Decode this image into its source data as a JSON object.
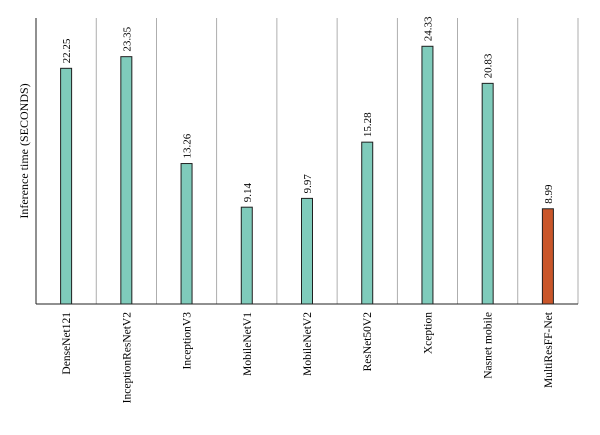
{
  "chart_data": {
    "type": "bar",
    "title": "",
    "xlabel": "",
    "ylabel": "Inference time (SECONDS)",
    "ylim": [
      0,
      27
    ],
    "grid": "vertical",
    "categories": [
      "DenseNet121",
      "InceptionResNetV2",
      "InceptionV3",
      "MobileNetV1",
      "MobileNetV2",
      "ResNet50V2",
      "Xception",
      "Nasnet mobile",
      "MultiResFF-Net"
    ],
    "values": [
      22.25,
      23.35,
      13.26,
      9.14,
      9.97,
      15.28,
      24.33,
      20.83,
      8.99
    ],
    "value_labels": [
      "22.25",
      "23.35",
      "13.26",
      "9.14",
      "9.97",
      "15.28",
      "24.33",
      "20.83",
      "8.99"
    ],
    "colors": {
      "default_bar": "#7fcbbb",
      "highlight_bar": "#c9562a",
      "highlight_index": 8
    }
  }
}
